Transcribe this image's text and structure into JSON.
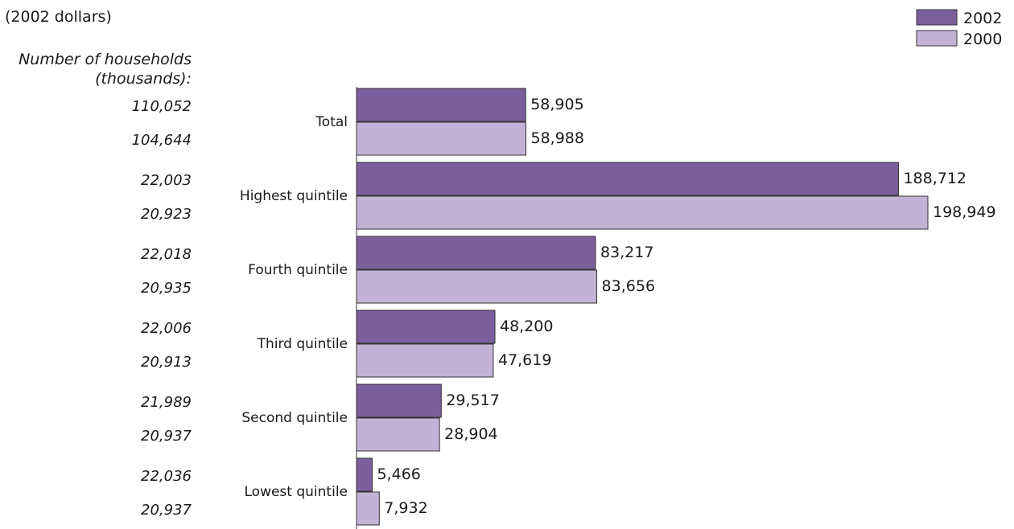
{
  "chart_data": {
    "type": "bar",
    "orientation": "horizontal",
    "note": "(2002 dollars)",
    "households_header": [
      "Number of households",
      "(thousands):"
    ],
    "categories": [
      "Total",
      "Highest quintile",
      "Fourth quintile",
      "Third quintile",
      "Second quintile",
      "Lowest quintile"
    ],
    "series": [
      {
        "name": "2002",
        "color": "#7b5f9c",
        "values": [
          58905,
          188712,
          83217,
          48200,
          29517,
          5466
        ],
        "labels": [
          "58,905",
          "188,712",
          "83,217",
          "48,200",
          "29,517",
          "5,466"
        ],
        "households": [
          "110,052",
          "22,003",
          "22,018",
          "22,006",
          "21,989",
          "22,036"
        ]
      },
      {
        "name": "2000",
        "color": "#c2b3d6",
        "values": [
          58988,
          198949,
          83656,
          47619,
          28904,
          7932
        ],
        "labels": [
          "58,988",
          "198,949",
          "83,656",
          "47,619",
          "28,904",
          "7,932"
        ],
        "households": [
          "104,644",
          "20,923",
          "20,935",
          "20,913",
          "20,937",
          "20,937"
        ]
      }
    ],
    "legend_position": "top-right",
    "grid": false
  }
}
